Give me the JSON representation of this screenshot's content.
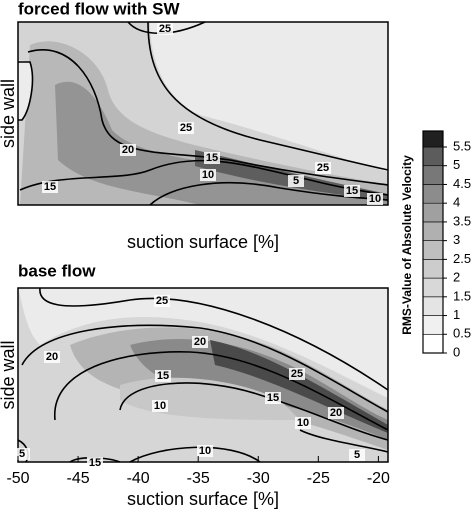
{
  "chart_data": [
    {
      "type": "contour",
      "title": "forced flow with SW",
      "xlabel": "suction surface [%]",
      "ylabel": "side wall",
      "contour_labels": [
        25,
        25,
        20,
        15,
        10,
        25,
        5,
        15,
        10,
        15
      ]
    },
    {
      "type": "contour",
      "title": "base flow",
      "xlabel": "suction surface [%]",
      "ylabel": "side wall",
      "xlim": [
        -50,
        -19.2
      ],
      "xticks": [
        -50,
        -45,
        -40,
        -35,
        -30,
        -25,
        -20
      ],
      "contour_labels": [
        25,
        20,
        15,
        20,
        25,
        10,
        15,
        10,
        20,
        5,
        10,
        15,
        5
      ]
    }
  ],
  "colorbar": {
    "title": "RMS-Value of Absolute Velocity",
    "lim": [
      0,
      5.5
    ],
    "ticks": [
      0,
      0.5,
      1,
      1.5,
      2,
      2.5,
      3,
      3.5,
      4,
      4.5,
      5,
      5.5
    ],
    "colors": [
      "#ffffff",
      "#f0f0f0",
      "#e4e4e4",
      "#d8d8d8",
      "#cccccc",
      "#bfbfbf",
      "#b0b0b0",
      "#a0a0a0",
      "#8c8c8c",
      "#787878",
      "#5c5c5c",
      "#202020"
    ]
  }
}
